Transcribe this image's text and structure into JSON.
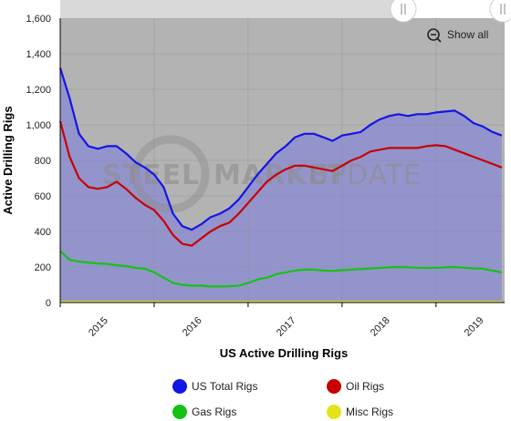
{
  "chart_data": {
    "type": "area",
    "title": "",
    "xlabel": "US Active Drilling Rigs",
    "ylabel": "Active Drilling Rigs",
    "ylim": [
      0,
      1600
    ],
    "xlim": [
      2014.6,
      2019.33
    ],
    "yticks": [
      "0",
      "200",
      "400",
      "600",
      "800",
      "1,000",
      "1,200",
      "1,400",
      "1,600"
    ],
    "xticks": [
      {
        "label": "2015",
        "x": 2015.0
      },
      {
        "label": "2016",
        "x": 2016.0
      },
      {
        "label": "2017",
        "x": 2017.0
      },
      {
        "label": "2018",
        "x": 2018.0
      },
      {
        "label": "2019",
        "x": 2019.0
      }
    ],
    "grid": true,
    "legend_position": "bottom",
    "colors": {
      "total": "#1515e6",
      "oil": "#c80000",
      "gas": "#16c116",
      "misc": "#e3e31a",
      "fill": "#9494cc",
      "plot_bg": "#b3b3b3"
    },
    "x": [
      2014.6,
      2014.7,
      2014.8,
      2014.9,
      2015.0,
      2015.1,
      2015.2,
      2015.3,
      2015.4,
      2015.5,
      2015.6,
      2015.7,
      2015.8,
      2015.9,
      2016.0,
      2016.1,
      2016.2,
      2016.3,
      2016.4,
      2016.5,
      2016.6,
      2016.7,
      2016.8,
      2016.9,
      2017.0,
      2017.1,
      2017.2,
      2017.3,
      2017.4,
      2017.5,
      2017.6,
      2017.7,
      2017.8,
      2017.9,
      2018.0,
      2018.1,
      2018.2,
      2018.3,
      2018.4,
      2018.5,
      2018.6,
      2018.7,
      2018.8,
      2018.9,
      2019.0,
      2019.1,
      2019.2,
      2019.3
    ],
    "series": [
      {
        "name": "US Total Rigs",
        "values": [
          1320,
          1150,
          950,
          880,
          865,
          880,
          880,
          840,
          790,
          760,
          720,
          650,
          500,
          430,
          410,
          440,
          480,
          500,
          530,
          580,
          650,
          720,
          780,
          840,
          880,
          930,
          950,
          950,
          930,
          910,
          940,
          950,
          960,
          1000,
          1030,
          1050,
          1060,
          1050,
          1060,
          1060,
          1070,
          1075,
          1080,
          1050,
          1010,
          990,
          960,
          940
        ]
      },
      {
        "name": "Oil Rigs",
        "values": [
          1020,
          820,
          700,
          650,
          640,
          650,
          680,
          640,
          590,
          550,
          520,
          460,
          380,
          330,
          320,
          360,
          400,
          430,
          450,
          500,
          560,
          620,
          680,
          720,
          750,
          770,
          770,
          760,
          750,
          740,
          770,
          800,
          820,
          850,
          860,
          870,
          870,
          870,
          870,
          880,
          885,
          880,
          860,
          840,
          820,
          800,
          780,
          760
        ]
      },
      {
        "name": "Gas Rigs",
        "values": [
          290,
          240,
          230,
          225,
          220,
          218,
          210,
          205,
          195,
          190,
          170,
          140,
          110,
          100,
          95,
          95,
          90,
          90,
          92,
          95,
          110,
          130,
          140,
          160,
          170,
          180,
          185,
          185,
          180,
          178,
          182,
          185,
          188,
          192,
          195,
          198,
          200,
          198,
          196,
          195,
          195,
          198,
          200,
          196,
          192,
          190,
          180,
          170
        ]
      },
      {
        "name": "Misc Rigs",
        "values": [
          3,
          3,
          3,
          3,
          3,
          3,
          3,
          3,
          3,
          3,
          3,
          3,
          3,
          3,
          3,
          3,
          3,
          3,
          3,
          3,
          3,
          3,
          3,
          3,
          3,
          3,
          3,
          3,
          3,
          3,
          3,
          3,
          3,
          3,
          3,
          3,
          3,
          3,
          3,
          3,
          3,
          3,
          3,
          3,
          3,
          3,
          3,
          3
        ]
      }
    ]
  },
  "watermark": {
    "left": "STEEL",
    "middle": "MARKET",
    "right": "UPDATE"
  },
  "controls": {
    "show_all_label": "Show all"
  }
}
